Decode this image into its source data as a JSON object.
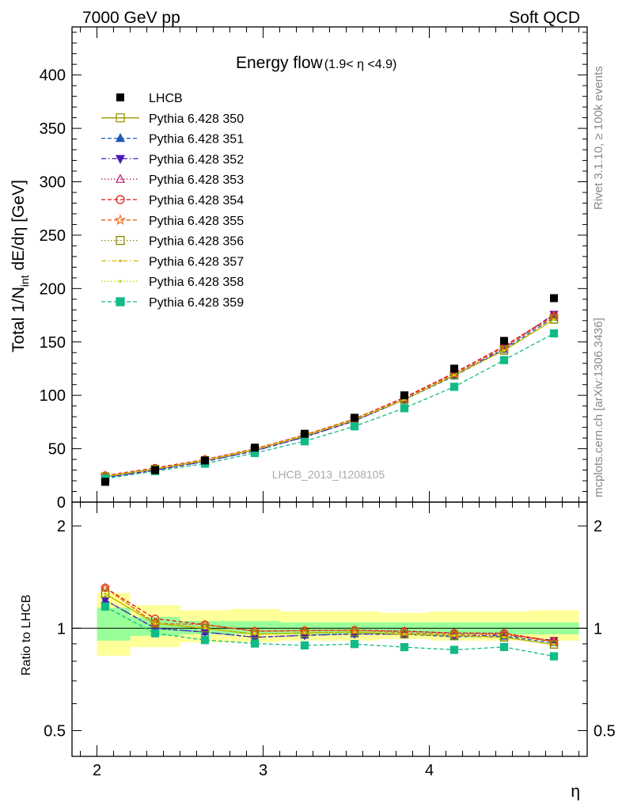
{
  "header": {
    "left": "7000 GeV pp",
    "right": "Soft QCD"
  },
  "side_labels": {
    "rivet": "Rivet 3.1.10, ≥ 100k events",
    "mcplots": "mcplots.cern.ch [arXiv:1306.3436]"
  },
  "chart_data": {
    "type": "line",
    "title": "Energy flow",
    "title_range": "(1.9< η <4.9)",
    "watermark": "LHCB_2013_I1208105",
    "xlabel": "η",
    "ylabel": "Total 1/N",
    "ylabel_sub": "int",
    "ylabel_tail": " dE/dη [GeV]",
    "ratio_ylabel": "Ratio to LHCB",
    "xlim": [
      1.85,
      4.95
    ],
    "ylim": [
      0,
      445
    ],
    "ratio_ylim": [
      0.42,
      2.35
    ],
    "ratio_log": true,
    "x_ticks": [
      "2",
      "3",
      "4"
    ],
    "y_ticks": [
      "0",
      "50",
      "100",
      "150",
      "200",
      "250",
      "300",
      "350",
      "400"
    ],
    "ratio_ticks": [
      "0.5",
      "1",
      "2"
    ],
    "x": [
      2.05,
      2.35,
      2.65,
      2.95,
      3.25,
      3.55,
      3.85,
      4.15,
      4.45,
      4.75
    ],
    "data_name": "LHCB",
    "data_values": [
      19,
      30,
      39,
      51,
      64,
      79,
      100,
      125,
      151,
      191
    ],
    "band_edges": [
      2.0,
      2.2,
      2.5,
      2.8,
      3.1,
      3.4,
      3.7,
      4.0,
      4.3,
      4.6,
      4.9
    ],
    "band_inner": [
      [
        0.92,
        1.15
      ],
      [
        0.95,
        1.08
      ],
      [
        0.96,
        1.05
      ],
      [
        0.96,
        1.05
      ],
      [
        0.96,
        1.04
      ],
      [
        0.96,
        1.04
      ],
      [
        0.96,
        1.04
      ],
      [
        0.96,
        1.04
      ],
      [
        0.96,
        1.04
      ],
      [
        0.96,
        1.04
      ]
    ],
    "band_outer": [
      [
        0.83,
        1.27
      ],
      [
        0.88,
        1.17
      ],
      [
        0.91,
        1.13
      ],
      [
        0.91,
        1.14
      ],
      [
        0.92,
        1.12
      ],
      [
        0.92,
        1.12
      ],
      [
        0.93,
        1.11
      ],
      [
        0.92,
        1.12
      ],
      [
        0.92,
        1.12
      ],
      [
        0.92,
        1.13
      ]
    ],
    "series": [
      {
        "name": "Pythia 6.428 350",
        "color": "#999900",
        "marker": "square-open",
        "dash": "solid",
        "values": [
          24,
          31,
          39,
          49,
          62,
          77,
          96,
          119,
          142,
          171
        ]
      },
      {
        "name": "Pythia 6.428 351",
        "color": "#1f5bb8",
        "marker": "triangle-up",
        "dash": "dash",
        "values": [
          23,
          30,
          38,
          48,
          61,
          76,
          96,
          118,
          143,
          173
        ]
      },
      {
        "name": "Pythia 6.428 352",
        "color": "#4b19b8",
        "marker": "triangle-down",
        "dash": "dashdot",
        "values": [
          23,
          30,
          38,
          48,
          61,
          76,
          96,
          119,
          144,
          176
        ]
      },
      {
        "name": "Pythia 6.428 353",
        "color": "#b8196b",
        "marker": "triangle-open",
        "dash": "dot",
        "values": [
          25,
          31,
          40,
          50,
          63,
          78,
          98,
          121,
          146,
          175
        ]
      },
      {
        "name": "Pythia 6.428 354",
        "color": "#dd1111",
        "marker": "circle-open",
        "dash": "dash",
        "values": [
          25,
          32,
          40,
          50,
          63,
          78,
          98,
          121,
          146,
          175
        ]
      },
      {
        "name": "Pythia 6.428 355",
        "color": "#ee6611",
        "marker": "star-open",
        "dash": "dash",
        "values": [
          25,
          31,
          40,
          50,
          63,
          78,
          97,
          120,
          145,
          174
        ]
      },
      {
        "name": "Pythia 6.428 356",
        "color": "#888800",
        "marker": "square-open",
        "dash": "dot",
        "values": [
          24,
          31,
          39,
          49,
          62,
          77,
          96,
          119,
          142,
          171
        ]
      },
      {
        "name": "Pythia 6.428 357",
        "color": "#d8b400",
        "marker": "dot",
        "dash": "dashdot",
        "values": [
          24,
          31,
          39,
          49,
          62,
          77,
          96,
          119,
          142,
          171
        ]
      },
      {
        "name": "Pythia 6.428 358",
        "color": "#c8d800",
        "marker": "dot",
        "dash": "dot",
        "values": [
          24,
          31,
          39,
          49,
          62,
          77,
          96,
          119,
          142,
          171
        ]
      },
      {
        "name": "Pythia 6.428 359",
        "color": "#11bb88",
        "marker": "square-filled",
        "dash": "dash",
        "values": [
          22,
          29,
          36,
          46,
          57,
          71,
          88,
          108,
          133,
          158
        ]
      }
    ]
  }
}
